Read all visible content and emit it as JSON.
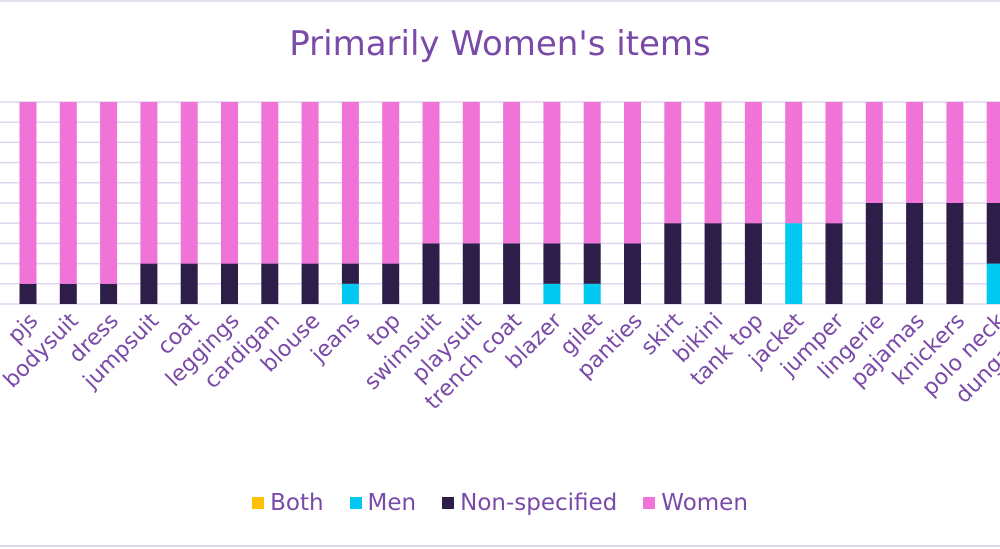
{
  "colors": {
    "text": "#7a4aa8",
    "grid": "#ddd6ee"
  },
  "chart_data": {
    "type": "bar",
    "stacked": true,
    "percent_stacked": true,
    "title": "Primarily Women's items",
    "ylim": [
      0,
      100
    ],
    "grid": true,
    "legend": "bottom",
    "categories": [
      "pjs",
      "bodysuit",
      "dress",
      "jumpsuit",
      "coat",
      "leggings",
      "cardigan",
      "blouse",
      "jeans",
      "top",
      "swimsuit",
      "playsuit",
      "trench coat",
      "blazer",
      "gilet",
      "panties",
      "skirt",
      "bikini",
      "tank top",
      "jacket",
      "jumper",
      "lingerie",
      "pajamas",
      "knickers",
      "polo neck",
      "dungarees"
    ],
    "series": [
      {
        "name": "Both",
        "color": "#ffc000",
        "values": [
          0,
          0,
          0,
          0,
          0,
          0,
          0,
          0,
          0,
          0,
          0,
          0,
          0,
          0,
          0,
          0,
          0,
          0,
          0,
          0,
          0,
          0,
          0,
          0,
          0,
          0
        ]
      },
      {
        "name": "Men",
        "color": "#00c8f0",
        "values": [
          0,
          0,
          0,
          0,
          0,
          0,
          0,
          0,
          10,
          0,
          0,
          0,
          0,
          10,
          10,
          0,
          0,
          0,
          0,
          40,
          0,
          0,
          0,
          0,
          20,
          0
        ]
      },
      {
        "name": "Non-specified",
        "color": "#2c1e48",
        "values": [
          10,
          10,
          10,
          20,
          20,
          20,
          20,
          20,
          10,
          20,
          30,
          30,
          30,
          20,
          20,
          30,
          40,
          40,
          40,
          0,
          40,
          50,
          50,
          50,
          30,
          50
        ]
      },
      {
        "name": "Women",
        "color": "#f074d8",
        "values": [
          90,
          90,
          90,
          80,
          80,
          80,
          80,
          80,
          80,
          80,
          70,
          70,
          70,
          70,
          70,
          70,
          60,
          60,
          60,
          60,
          60,
          50,
          50,
          50,
          50,
          50
        ]
      }
    ],
    "extra_label_partial": "bar"
  }
}
